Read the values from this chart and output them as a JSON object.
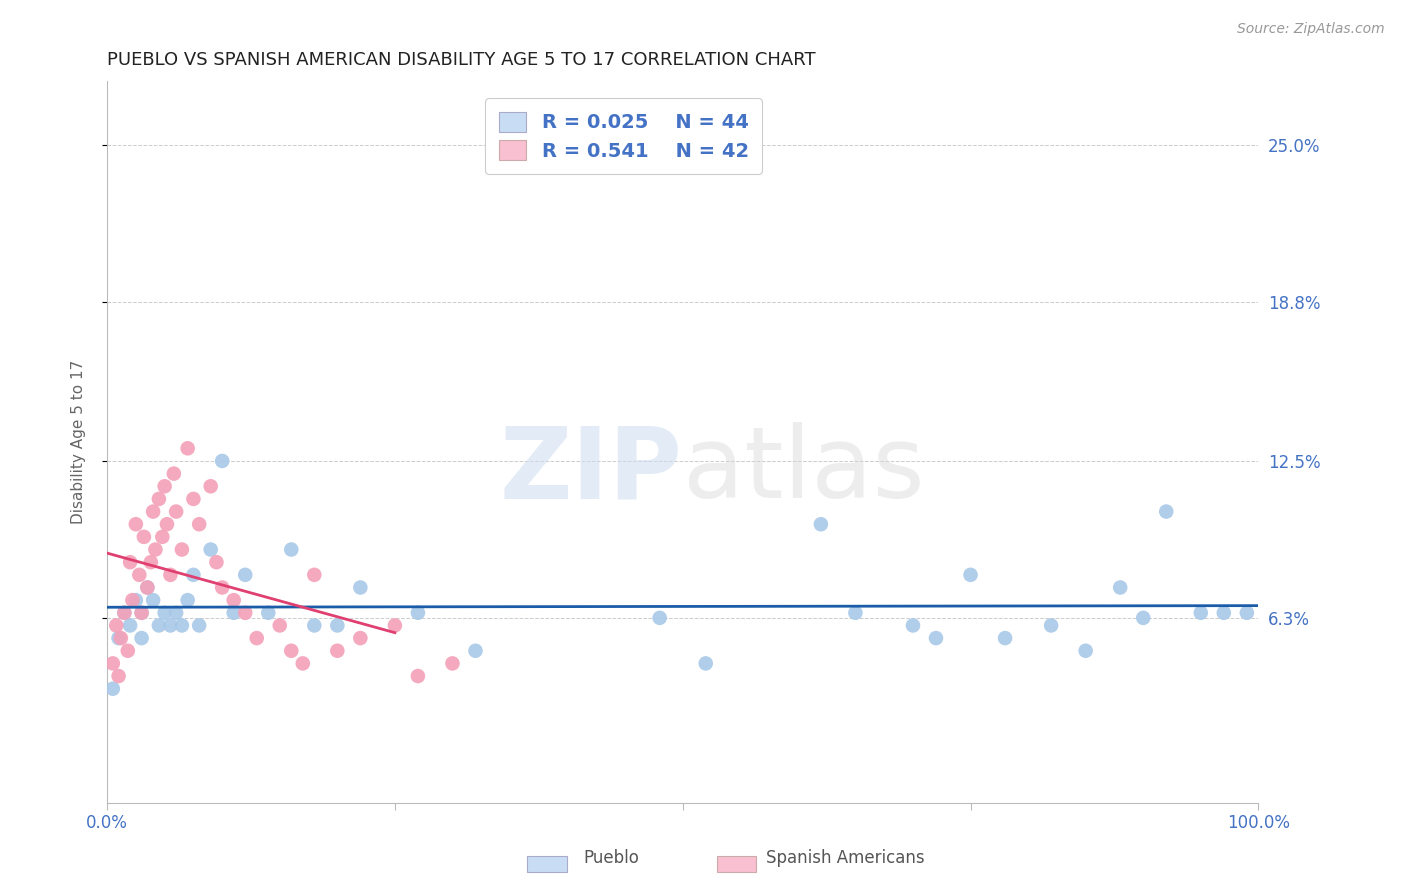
{
  "title": "PUEBLO VS SPANISH AMERICAN DISABILITY AGE 5 TO 17 CORRELATION CHART",
  "source": "Source: ZipAtlas.com",
  "ylabel": "Disability Age 5 to 17",
  "watermark_zip": "ZIP",
  "watermark_atlas": "atlas",
  "xlim": [
    0.0,
    1.0
  ],
  "ylim": [
    -0.01,
    0.275
  ],
  "ytick_positions": [
    0.063,
    0.125,
    0.188,
    0.25
  ],
  "ytick_labels": [
    "6.3%",
    "12.5%",
    "18.8%",
    "25.0%"
  ],
  "pueblo_r": "0.025",
  "pueblo_n": "44",
  "spanish_r": "0.541",
  "spanish_n": "42",
  "pueblo_color": "#a8c8e8",
  "spanish_color": "#f4a0b8",
  "pueblo_line_color": "#1a5ca8",
  "spanish_line_color": "#e04070",
  "title_color": "#222222",
  "ytick_color": "#4472c4",
  "grid_color": "#cccccc",
  "pueblo_x": [
    0.005,
    0.01,
    0.015,
    0.02,
    0.025,
    0.03,
    0.03,
    0.035,
    0.04,
    0.045,
    0.05,
    0.055,
    0.06,
    0.065,
    0.07,
    0.075,
    0.08,
    0.09,
    0.1,
    0.11,
    0.12,
    0.14,
    0.16,
    0.18,
    0.2,
    0.22,
    0.27,
    0.32,
    0.48,
    0.52,
    0.62,
    0.65,
    0.7,
    0.72,
    0.75,
    0.78,
    0.82,
    0.85,
    0.88,
    0.9,
    0.92,
    0.95,
    0.97,
    0.99
  ],
  "pueblo_y": [
    0.035,
    0.055,
    0.065,
    0.06,
    0.07,
    0.055,
    0.065,
    0.075,
    0.07,
    0.06,
    0.065,
    0.06,
    0.065,
    0.06,
    0.07,
    0.08,
    0.06,
    0.09,
    0.125,
    0.065,
    0.08,
    0.065,
    0.09,
    0.06,
    0.06,
    0.075,
    0.065,
    0.05,
    0.063,
    0.045,
    0.1,
    0.065,
    0.06,
    0.055,
    0.08,
    0.055,
    0.06,
    0.05,
    0.075,
    0.063,
    0.105,
    0.065,
    0.065,
    0.065
  ],
  "spanish_x": [
    0.005,
    0.008,
    0.01,
    0.012,
    0.015,
    0.018,
    0.02,
    0.022,
    0.025,
    0.028,
    0.03,
    0.032,
    0.035,
    0.038,
    0.04,
    0.042,
    0.045,
    0.048,
    0.05,
    0.052,
    0.055,
    0.058,
    0.06,
    0.065,
    0.07,
    0.075,
    0.08,
    0.09,
    0.095,
    0.1,
    0.11,
    0.12,
    0.13,
    0.15,
    0.16,
    0.17,
    0.18,
    0.2,
    0.22,
    0.25,
    0.27,
    0.3
  ],
  "spanish_y": [
    0.045,
    0.06,
    0.04,
    0.055,
    0.065,
    0.05,
    0.085,
    0.07,
    0.1,
    0.08,
    0.065,
    0.095,
    0.075,
    0.085,
    0.105,
    0.09,
    0.11,
    0.095,
    0.115,
    0.1,
    0.08,
    0.12,
    0.105,
    0.09,
    0.13,
    0.11,
    0.1,
    0.115,
    0.085,
    0.075,
    0.07,
    0.065,
    0.055,
    0.06,
    0.05,
    0.045,
    0.08,
    0.05,
    0.055,
    0.06,
    0.04,
    0.045
  ]
}
